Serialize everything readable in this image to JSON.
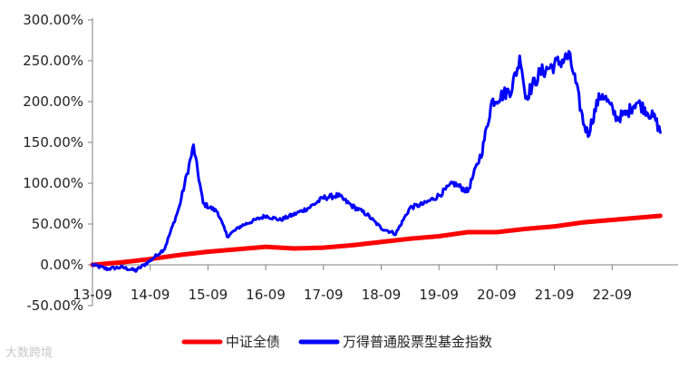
{
  "chart_data": {
    "type": "line",
    "title": "",
    "xlabel": "",
    "ylabel": "",
    "x_ticks": [
      "13-09",
      "14-09",
      "15-09",
      "16-09",
      "17-09",
      "18-09",
      "19-09",
      "20-09",
      "21-09",
      "22-09"
    ],
    "y_ticks": [
      "300.00%",
      "250.00%",
      "200.00%",
      "150.00%",
      "100.00%",
      "50.00%",
      "0.00%",
      "-50.00%"
    ],
    "ylim": [
      -50,
      300
    ],
    "y_unit": "%",
    "legend_position": "bottom",
    "series": [
      {
        "name": "中证全债",
        "color": "#ff0000",
        "points": [
          [
            "2013-09",
            0
          ],
          [
            "2014-03",
            3
          ],
          [
            "2014-09",
            7
          ],
          [
            "2015-03",
            12
          ],
          [
            "2015-09",
            16
          ],
          [
            "2016-03",
            19
          ],
          [
            "2016-09",
            22
          ],
          [
            "2017-03",
            20
          ],
          [
            "2017-09",
            21
          ],
          [
            "2018-03",
            24
          ],
          [
            "2018-09",
            28
          ],
          [
            "2019-03",
            32
          ],
          [
            "2019-09",
            35
          ],
          [
            "2020-03",
            40
          ],
          [
            "2020-09",
            40
          ],
          [
            "2021-03",
            44
          ],
          [
            "2021-09",
            47
          ],
          [
            "2022-03",
            52
          ],
          [
            "2022-09",
            55
          ],
          [
            "2023-03",
            58
          ],
          [
            "2023-07",
            60
          ]
        ]
      },
      {
        "name": "万得普通股票型基金指数",
        "color": "#0000ff",
        "points": [
          [
            "2013-09",
            0
          ],
          [
            "2013-12",
            -5
          ],
          [
            "2014-03",
            -3
          ],
          [
            "2014-06",
            -7
          ],
          [
            "2014-09",
            5
          ],
          [
            "2014-12",
            20
          ],
          [
            "2015-03",
            70
          ],
          [
            "2015-06",
            145
          ],
          [
            "2015-08",
            75
          ],
          [
            "2015-11",
            65
          ],
          [
            "2016-01",
            35
          ],
          [
            "2016-04",
            48
          ],
          [
            "2016-09",
            60
          ],
          [
            "2016-12",
            55
          ],
          [
            "2017-03",
            62
          ],
          [
            "2017-06",
            70
          ],
          [
            "2017-09",
            82
          ],
          [
            "2017-12",
            85
          ],
          [
            "2018-03",
            72
          ],
          [
            "2018-06",
            62
          ],
          [
            "2018-09",
            45
          ],
          [
            "2018-12",
            38
          ],
          [
            "2019-03",
            70
          ],
          [
            "2019-06",
            75
          ],
          [
            "2019-09",
            85
          ],
          [
            "2019-12",
            100
          ],
          [
            "2020-03",
            90
          ],
          [
            "2020-06",
            140
          ],
          [
            "2020-08",
            200
          ],
          [
            "2020-12",
            215
          ],
          [
            "2021-02",
            255
          ],
          [
            "2021-03",
            205
          ],
          [
            "2021-06",
            235
          ],
          [
            "2021-09",
            245
          ],
          [
            "2021-12",
            255
          ],
          [
            "2022-01",
            235
          ],
          [
            "2022-03",
            175
          ],
          [
            "2022-04",
            160
          ],
          [
            "2022-06",
            200
          ],
          [
            "2022-07",
            210
          ],
          [
            "2022-10",
            180
          ],
          [
            "2022-12",
            185
          ],
          [
            "2023-02",
            200
          ],
          [
            "2023-04",
            190
          ],
          [
            "2023-06",
            178
          ],
          [
            "2023-07",
            162
          ]
        ]
      }
    ]
  },
  "watermark": "大数跨境"
}
